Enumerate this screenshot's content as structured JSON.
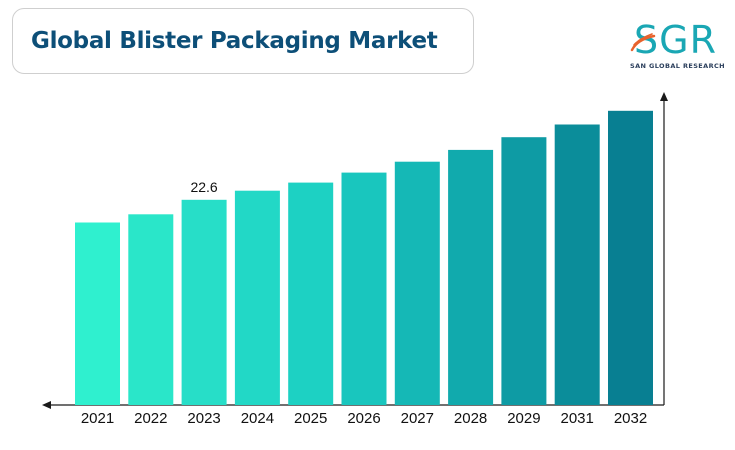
{
  "header": {
    "title": "Global Blister Packaging Market"
  },
  "logo": {
    "letters": "SGR",
    "subtitle": "SAN GLOBAL RESEARCH",
    "colors": {
      "primary": "#1aa7b4",
      "accent": "#e8622c",
      "text": "#2b3f5c"
    }
  },
  "chart_data": {
    "type": "bar",
    "title": "Global Blister Packaging Market",
    "xlabel": "",
    "ylabel": "",
    "categories": [
      "2021",
      "2022",
      "2023",
      "2024",
      "2025",
      "2026",
      "2027",
      "2028",
      "2029",
      "2031",
      "2032"
    ],
    "values": [
      20.1,
      21.0,
      22.6,
      23.6,
      24.5,
      25.6,
      26.8,
      28.1,
      29.5,
      30.9,
      32.4
    ],
    "data_labels": {
      "2023": "22.6"
    },
    "ylim": [
      0,
      38
    ],
    "grid": false,
    "legend": "none",
    "colors": [
      "#2ff0cf",
      "#2ae6c9",
      "#27dec8",
      "#22d8c6",
      "#1dd1c3",
      "#19c6be",
      "#15b8b6",
      "#11aaad",
      "#0e9ba4",
      "#0b8d9a",
      "#087f92"
    ]
  }
}
